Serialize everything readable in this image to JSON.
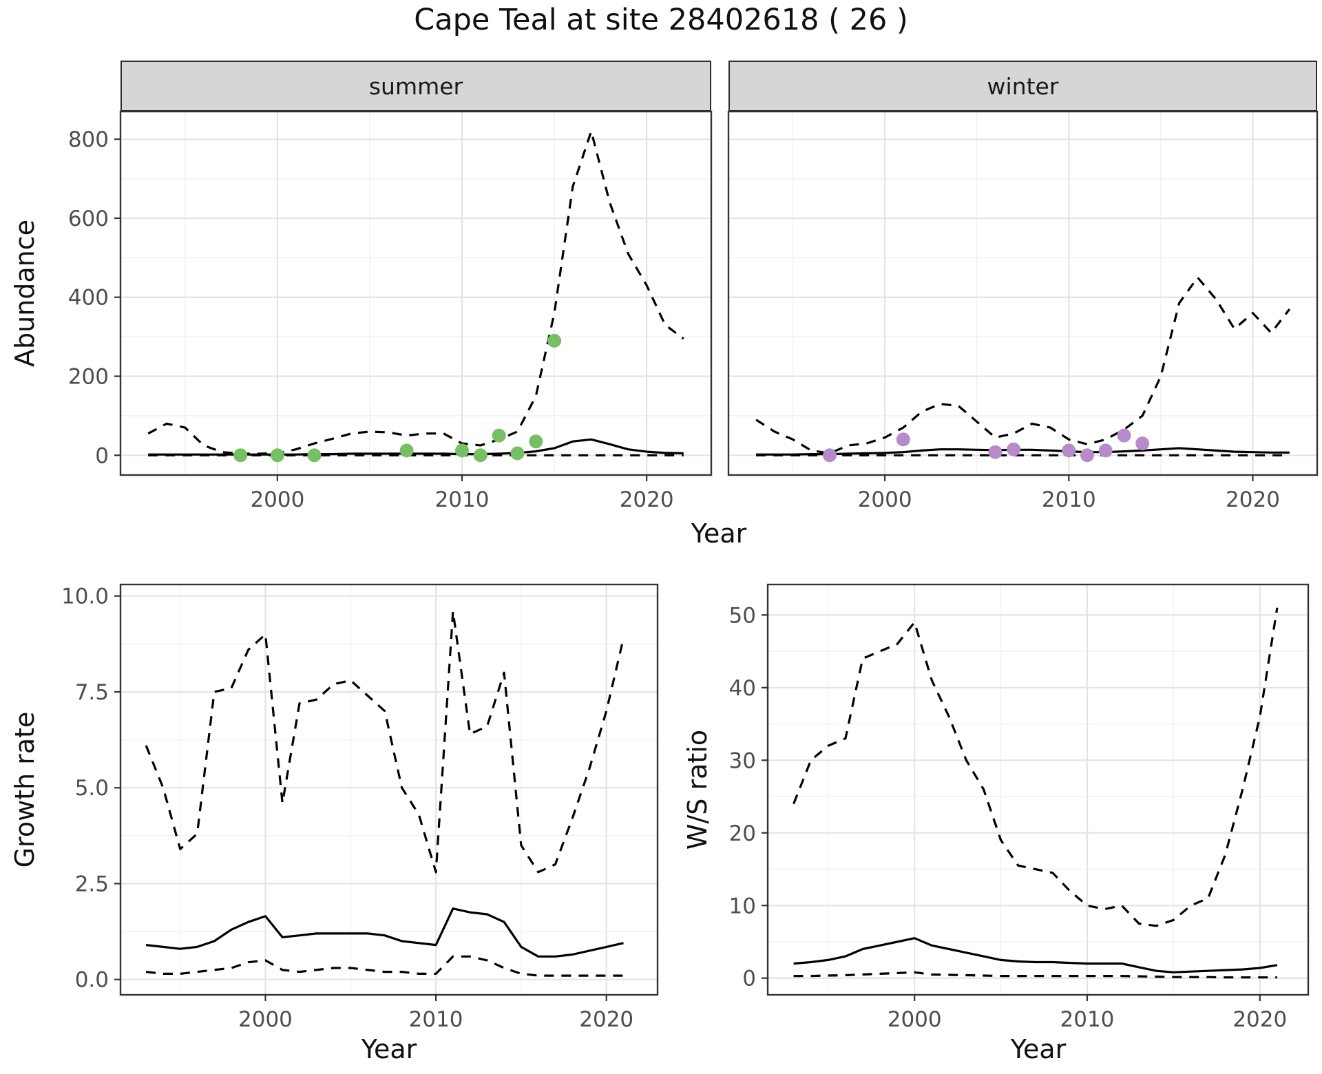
{
  "title": "Cape Teal at site 28402618 ( 26 )",
  "colors": {
    "summer_points": "#76c063",
    "winter_points": "#b58cc9",
    "line": "#000000",
    "grid_major": "#e4e4e4",
    "grid_minor": "#f2f2f2",
    "panel_border": "#333333",
    "strip_bg": "#d6d6d6",
    "axis_text": "#4d4d4d"
  },
  "top_row": {
    "ylabel": "Abundance",
    "xlabel": "Year",
    "facets": [
      "summer",
      "winter"
    ]
  },
  "bottom_left": {
    "ylabel": "Growth rate",
    "xlabel": "Year"
  },
  "bottom_right": {
    "ylabel": "W/S ratio",
    "xlabel": "Year"
  },
  "chart_data": [
    {
      "id": "abundance_summer",
      "type": "line",
      "facet": "summer",
      "xlabel": "Year",
      "ylabel": "Abundance",
      "xlim": [
        1991.5,
        2023.5
      ],
      "ylim": [
        -50,
        870
      ],
      "xticks": [
        2000,
        2010,
        2020
      ],
      "yticks": [
        0,
        200,
        400,
        600,
        800
      ],
      "ytick_labels": [
        "0",
        "200",
        "400",
        "600",
        "800"
      ],
      "x": [
        1993,
        1994,
        1995,
        1996,
        1997,
        1998,
        1999,
        2000,
        2001,
        2002,
        2003,
        2004,
        2005,
        2006,
        2007,
        2008,
        2009,
        2010,
        2011,
        2012,
        2013,
        2014,
        2015,
        2016,
        2017,
        2018,
        2019,
        2020,
        2021,
        2022
      ],
      "series": [
        {
          "name": "upper_ci",
          "style": "dashed",
          "values": [
            55,
            80,
            70,
            25,
            8,
            4,
            4,
            5,
            15,
            30,
            42,
            55,
            60,
            58,
            50,
            55,
            55,
            30,
            25,
            40,
            60,
            150,
            360,
            680,
            820,
            640,
            510,
            430,
            330,
            295
          ]
        },
        {
          "name": "median",
          "style": "solid",
          "values": [
            2,
            2,
            2,
            2,
            2,
            2,
            2,
            2,
            2,
            3,
            3,
            4,
            4,
            4,
            4,
            4,
            4,
            3,
            3,
            4,
            6,
            10,
            18,
            35,
            40,
            28,
            15,
            9,
            6,
            5
          ]
        },
        {
          "name": "lower_ci",
          "style": "dashed",
          "values": [
            0,
            0,
            0,
            0,
            0,
            0,
            0,
            0,
            0,
            0,
            0,
            0,
            0,
            0,
            0,
            0,
            0,
            0,
            0,
            0,
            0,
            0,
            0,
            0,
            0,
            0,
            0,
            0,
            0,
            0
          ]
        }
      ],
      "points": {
        "name": "observed_counts",
        "color_key": "summer_points",
        "x": [
          1998,
          2000,
          2002,
          2007,
          2010,
          2011,
          2012,
          2013,
          2014,
          2015
        ],
        "y": [
          0,
          0,
          0,
          12,
          12,
          0,
          50,
          5,
          35,
          290
        ]
      }
    },
    {
      "id": "abundance_winter",
      "type": "line",
      "facet": "winter",
      "xlabel": "Year",
      "ylabel": "Abundance",
      "xlim": [
        1991.5,
        2023.5
      ],
      "ylim": [
        -50,
        870
      ],
      "xticks": [
        2000,
        2010,
        2020
      ],
      "yticks": [
        0,
        200,
        400,
        600,
        800
      ],
      "ytick_labels": [
        "0",
        "200",
        "400",
        "600",
        "800"
      ],
      "x": [
        1993,
        1994,
        1995,
        1996,
        1997,
        1998,
        1999,
        2000,
        2001,
        2002,
        2003,
        2004,
        2005,
        2006,
        2007,
        2008,
        2009,
        2010,
        2011,
        2012,
        2013,
        2014,
        2015,
        2016,
        2017,
        2018,
        2019,
        2020,
        2021,
        2022
      ],
      "series": [
        {
          "name": "upper_ci",
          "style": "dashed",
          "values": [
            90,
            60,
            40,
            12,
            5,
            25,
            30,
            45,
            70,
            110,
            130,
            125,
            85,
            45,
            55,
            80,
            70,
            40,
            28,
            40,
            65,
            100,
            200,
            385,
            450,
            395,
            320,
            360,
            310,
            370
          ]
        },
        {
          "name": "median",
          "style": "solid",
          "values": [
            2,
            2,
            2,
            3,
            3,
            4,
            5,
            6,
            8,
            12,
            15,
            15,
            14,
            13,
            14,
            14,
            12,
            10,
            8,
            8,
            10,
            12,
            15,
            18,
            15,
            12,
            9,
            8,
            7,
            7
          ]
        },
        {
          "name": "lower_ci",
          "style": "dashed",
          "values": [
            0,
            0,
            0,
            0,
            0,
            0,
            0,
            0,
            0,
            0,
            0,
            0,
            0,
            0,
            0,
            0,
            0,
            0,
            0,
            0,
            0,
            0,
            0,
            0,
            0,
            0,
            0,
            0,
            0,
            0
          ]
        }
      ],
      "points": {
        "name": "observed_counts",
        "color_key": "winter_points",
        "x": [
          1997,
          2001,
          2006,
          2007,
          2010,
          2011,
          2012,
          2013,
          2014
        ],
        "y": [
          0,
          40,
          8,
          15,
          12,
          0,
          12,
          50,
          30
        ]
      }
    },
    {
      "id": "growth_rate",
      "type": "line",
      "xlabel": "Year",
      "ylabel": "Growth rate",
      "xlim": [
        1991.5,
        2023
      ],
      "ylim": [
        -0.4,
        10.3
      ],
      "xticks": [
        2000,
        2010,
        2020
      ],
      "yticks": [
        0,
        2.5,
        5,
        7.5,
        10
      ],
      "ytick_labels": [
        "0.0",
        "2.5",
        "5.0",
        "7.5",
        "10.0"
      ],
      "x": [
        1993,
        1994,
        1995,
        1996,
        1997,
        1998,
        1999,
        2000,
        2001,
        2002,
        2003,
        2004,
        2005,
        2006,
        2007,
        2008,
        2009,
        2010,
        2011,
        2012,
        2013,
        2014,
        2015,
        2016,
        2017,
        2018,
        2019,
        2020,
        2021
      ],
      "series": [
        {
          "name": "upper_ci",
          "style": "dashed",
          "values": [
            6.1,
            5.0,
            3.4,
            3.8,
            7.5,
            7.6,
            8.6,
            9.0,
            4.6,
            7.2,
            7.3,
            7.7,
            7.8,
            7.4,
            7.0,
            5.0,
            4.3,
            2.8,
            9.6,
            6.4,
            6.6,
            8.0,
            3.5,
            2.8,
            3.0,
            4.2,
            5.5,
            7.0,
            8.9
          ]
        },
        {
          "name": "median",
          "style": "solid",
          "values": [
            0.9,
            0.85,
            0.8,
            0.85,
            1.0,
            1.3,
            1.5,
            1.65,
            1.1,
            1.15,
            1.2,
            1.2,
            1.2,
            1.2,
            1.15,
            1.0,
            0.95,
            0.9,
            1.85,
            1.75,
            1.7,
            1.5,
            0.85,
            0.6,
            0.6,
            0.65,
            0.75,
            0.85,
            0.95
          ]
        },
        {
          "name": "lower_ci",
          "style": "dashed",
          "values": [
            0.2,
            0.15,
            0.15,
            0.2,
            0.25,
            0.3,
            0.45,
            0.5,
            0.25,
            0.2,
            0.25,
            0.3,
            0.3,
            0.25,
            0.2,
            0.2,
            0.15,
            0.15,
            0.6,
            0.6,
            0.5,
            0.3,
            0.15,
            0.1,
            0.1,
            0.1,
            0.1,
            0.1,
            0.1
          ]
        }
      ]
    },
    {
      "id": "ws_ratio",
      "type": "line",
      "xlabel": "Year",
      "ylabel": "W/S ratio",
      "xlim": [
        1991.5,
        2022.8
      ],
      "ylim": [
        -2.3,
        54.2
      ],
      "xticks": [
        2000,
        2010,
        2020
      ],
      "yticks": [
        0,
        10,
        20,
        30,
        40,
        50
      ],
      "ytick_labels": [
        "0",
        "10",
        "20",
        "30",
        "40",
        "50"
      ],
      "x": [
        1993,
        1994,
        1995,
        1996,
        1997,
        1998,
        1999,
        2000,
        2001,
        2002,
        2003,
        2004,
        2005,
        2006,
        2007,
        2008,
        2009,
        2010,
        2011,
        2012,
        2013,
        2014,
        2015,
        2016,
        2017,
        2018,
        2019,
        2020,
        2021
      ],
      "series": [
        {
          "name": "upper_ci",
          "style": "dashed",
          "values": [
            24,
            30,
            32,
            33,
            44,
            45,
            46,
            49,
            41,
            36,
            30,
            26,
            19,
            15.5,
            15,
            14.5,
            12,
            10,
            9.5,
            10,
            7.5,
            7.2,
            8,
            10,
            11,
            17,
            26,
            36,
            51
          ]
        },
        {
          "name": "median",
          "style": "solid",
          "values": [
            2,
            2.2,
            2.5,
            3,
            4,
            4.5,
            5,
            5.5,
            4.5,
            4,
            3.5,
            3,
            2.5,
            2.3,
            2.2,
            2.2,
            2.1,
            2,
            2,
            2,
            1.5,
            1,
            0.8,
            0.9,
            1,
            1.1,
            1.2,
            1.4,
            1.8
          ]
        },
        {
          "name": "lower_ci",
          "style": "dashed",
          "values": [
            0.3,
            0.3,
            0.35,
            0.4,
            0.5,
            0.6,
            0.7,
            0.8,
            0.5,
            0.45,
            0.4,
            0.35,
            0.3,
            0.3,
            0.3,
            0.3,
            0.3,
            0.3,
            0.3,
            0.3,
            0.25,
            0.2,
            0.15,
            0.15,
            0.15,
            0.1,
            0.1,
            0.1,
            0.1
          ]
        }
      ]
    }
  ]
}
